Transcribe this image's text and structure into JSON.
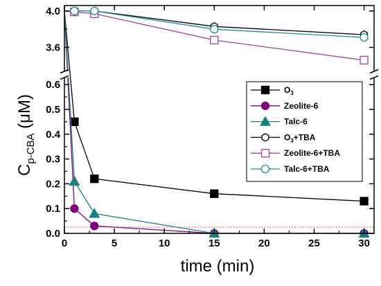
{
  "chart_data": {
    "type": "line",
    "xlabel": "time (min)",
    "ylabel": "C",
    "ylabel_sub": "p-CBA",
    "ylabel_unit": " (μM)",
    "xlim": [
      0,
      31
    ],
    "ylim_lower": [
      0,
      0.62
    ],
    "ylim_upper": [
      3.36,
      4.06
    ],
    "y_axis_break": true,
    "x_ticks": [
      0,
      5,
      10,
      15,
      20,
      25,
      30
    ],
    "y_ticks_lower": [
      "0.0",
      "0.1",
      "0.2",
      "0.3",
      "0.4",
      "0.5",
      "0.6"
    ],
    "y_ticks_upper": [
      "3.6",
      "4.0"
    ],
    "legend_position": "middle-right",
    "reference_line": {
      "y": 0.025,
      "color": "#e05050",
      "style": "dotted"
    },
    "series": [
      {
        "name": "O",
        "name_sub": "3",
        "name_rest": "",
        "color": "#000000",
        "marker": "square",
        "filled": true,
        "x": [
          0,
          1,
          3,
          15,
          30
        ],
        "y": [
          4.0,
          0.45,
          0.22,
          0.16,
          0.13
        ]
      },
      {
        "name": "Zeolite-6",
        "name_sub": "",
        "name_rest": "",
        "color": "#800080",
        "marker": "circle",
        "filled": true,
        "x": [
          0,
          1,
          3,
          15,
          30
        ],
        "y": [
          4.0,
          0.1,
          0.03,
          0.0,
          0.0
        ]
      },
      {
        "name": "Talc-6",
        "name_sub": "",
        "name_rest": "",
        "color": "#1a7f7a",
        "marker": "triangle",
        "filled": true,
        "x": [
          0,
          1,
          3,
          15,
          30
        ],
        "y": [
          4.0,
          0.21,
          0.08,
          0.0,
          0.0
        ]
      },
      {
        "name": "O",
        "name_sub": "3",
        "name_rest": "+TBA",
        "color": "#000000",
        "marker": "hexagon",
        "filled": false,
        "x": [
          0,
          1,
          3,
          15,
          30
        ],
        "y": [
          4.0,
          4.0,
          4.0,
          3.83,
          3.74
        ]
      },
      {
        "name": "Zeolite-6+TBA",
        "name_sub": "",
        "name_rest": "",
        "color": "#a040a0",
        "marker": "square",
        "filled": false,
        "x": [
          0,
          1,
          3,
          15,
          30
        ],
        "y": [
          4.0,
          3.99,
          3.97,
          3.68,
          3.46
        ]
      },
      {
        "name": "Talc-6+TBA",
        "name_sub": "",
        "name_rest": "",
        "color": "#1a9090",
        "marker": "circle",
        "filled": false,
        "x": [
          0,
          1,
          3,
          15,
          30
        ],
        "y": [
          4.0,
          4.0,
          4.0,
          3.8,
          3.71
        ]
      }
    ]
  }
}
